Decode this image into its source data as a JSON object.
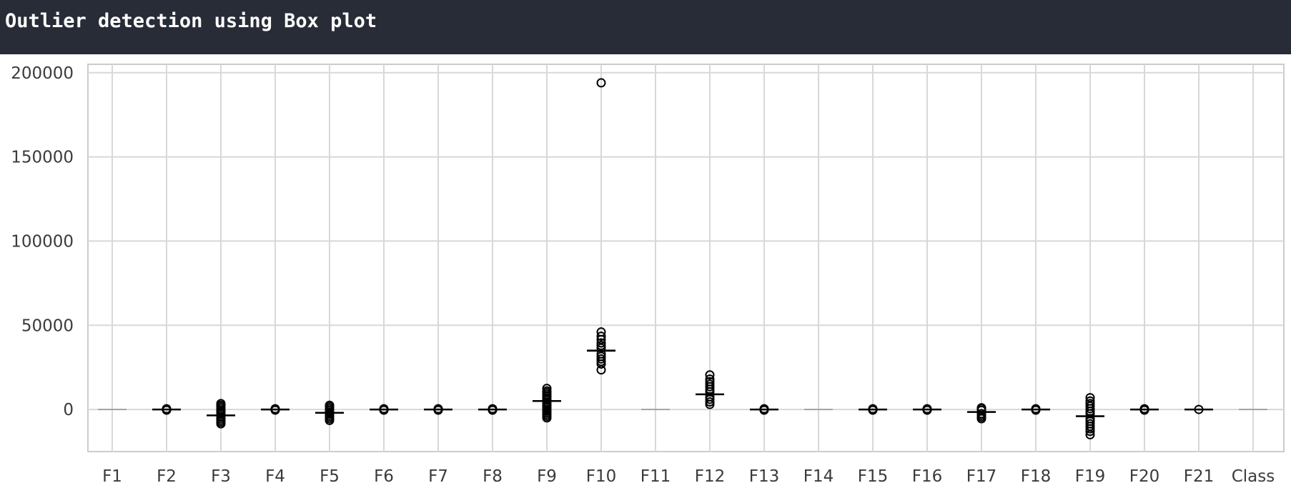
{
  "header": {
    "title": "Outlier detection using Box plot"
  },
  "colors": {
    "header_bg": "#282c36",
    "grid": "#d8d8d8",
    "frame": "#cccccc",
    "marker": "#000000"
  },
  "chart_data": {
    "type": "box",
    "title": "",
    "xlabel": "",
    "ylabel": "",
    "grid": true,
    "ylim": [
      -25000,
      205000
    ],
    "yticks": [
      0,
      50000,
      100000,
      150000,
      200000
    ],
    "categories": [
      "F1",
      "F2",
      "F3",
      "F4",
      "F5",
      "F6",
      "F7",
      "F8",
      "F9",
      "F10",
      "F11",
      "F12",
      "F13",
      "F14",
      "F15",
      "F16",
      "F17",
      "F18",
      "F19",
      "F20",
      "F21",
      "Class"
    ],
    "boxes": [
      {
        "name": "F1",
        "median": 0,
        "whisker_low": 0,
        "whisker_high": 0,
        "outliers": []
      },
      {
        "name": "F2",
        "median": 0,
        "whisker_low": 0,
        "whisker_high": 0,
        "outliers": [
          -400,
          0,
          400
        ]
      },
      {
        "name": "F3",
        "median": -3500,
        "whisker_low": -3600,
        "whisker_high": -3400,
        "outliers": [
          -8500,
          -7500,
          -6500,
          -5500,
          -4500,
          -2500,
          -1500,
          -500,
          500,
          1500,
          2500,
          3500
        ]
      },
      {
        "name": "F4",
        "median": 0,
        "whisker_low": 0,
        "whisker_high": 0,
        "outliers": [
          -400,
          0,
          400
        ]
      },
      {
        "name": "F5",
        "median": -2000,
        "whisker_low": -2100,
        "whisker_high": -1900,
        "outliers": [
          -6500,
          -5500,
          -4500,
          -3500,
          -2500,
          -1500,
          -500,
          500,
          1500,
          2500
        ]
      },
      {
        "name": "F6",
        "median": 0,
        "whisker_low": 0,
        "whisker_high": 0,
        "outliers": [
          -400,
          0,
          400
        ]
      },
      {
        "name": "F7",
        "median": 0,
        "whisker_low": 0,
        "whisker_high": 0,
        "outliers": [
          -400,
          0,
          400
        ]
      },
      {
        "name": "F8",
        "median": 0,
        "whisker_low": 0,
        "whisker_high": 0,
        "outliers": [
          -400,
          0,
          400
        ]
      },
      {
        "name": "F9",
        "median": 5000,
        "whisker_low": 4800,
        "whisker_high": 5200,
        "outliers": [
          -5000,
          -4000,
          -3000,
          -2000,
          -1000,
          0,
          1000,
          2000,
          3000,
          4000,
          6000,
          7000,
          8000,
          9000,
          10000,
          11000,
          12500
        ]
      },
      {
        "name": "F10",
        "median": 35000,
        "whisker_low": 34500,
        "whisker_high": 35500,
        "outliers": [
          23500,
          27000,
          28500,
          30000,
          31500,
          33000,
          36500,
          38000,
          39500,
          41500,
          43500,
          46000,
          194000
        ]
      },
      {
        "name": "F11",
        "median": 0,
        "whisker_low": 0,
        "whisker_high": 0,
        "outliers": []
      },
      {
        "name": "F12",
        "median": 9000,
        "whisker_low": 8800,
        "whisker_high": 9200,
        "outliers": [
          3000,
          4500,
          6000,
          7500,
          10500,
          12000,
          13500,
          15000,
          16500,
          18000,
          20500
        ]
      },
      {
        "name": "F13",
        "median": 0,
        "whisker_low": 0,
        "whisker_high": 0,
        "outliers": [
          -400,
          0,
          400
        ]
      },
      {
        "name": "F14",
        "median": 0,
        "whisker_low": 0,
        "whisker_high": 0,
        "outliers": []
      },
      {
        "name": "F15",
        "median": 0,
        "whisker_low": 0,
        "whisker_high": 0,
        "outliers": [
          -400,
          0,
          400
        ]
      },
      {
        "name": "F16",
        "median": 0,
        "whisker_low": 0,
        "whisker_high": 0,
        "outliers": [
          -400,
          0,
          400
        ]
      },
      {
        "name": "F17",
        "median": -1500,
        "whisker_low": -1600,
        "whisker_high": -1400,
        "outliers": [
          -5500,
          -4500,
          -3500,
          -2500,
          -500,
          500,
          1000
        ]
      },
      {
        "name": "F18",
        "median": 0,
        "whisker_low": 0,
        "whisker_high": 0,
        "outliers": [
          -400,
          0,
          400
        ]
      },
      {
        "name": "F19",
        "median": -4000,
        "whisker_low": -4200,
        "whisker_high": -3800,
        "outliers": [
          -15000,
          -13000,
          -11500,
          -10000,
          -8500,
          -7000,
          -5500,
          -2500,
          -1000,
          500,
          2000,
          3500,
          5000,
          7000
        ]
      },
      {
        "name": "F20",
        "median": 0,
        "whisker_low": 0,
        "whisker_high": 0,
        "outliers": [
          -400,
          0,
          400
        ]
      },
      {
        "name": "F21",
        "median": 0,
        "whisker_low": 0,
        "whisker_high": 0,
        "outliers": [
          0
        ]
      },
      {
        "name": "Class",
        "median": 0,
        "whisker_low": 0,
        "whisker_high": 0,
        "outliers": []
      }
    ]
  }
}
